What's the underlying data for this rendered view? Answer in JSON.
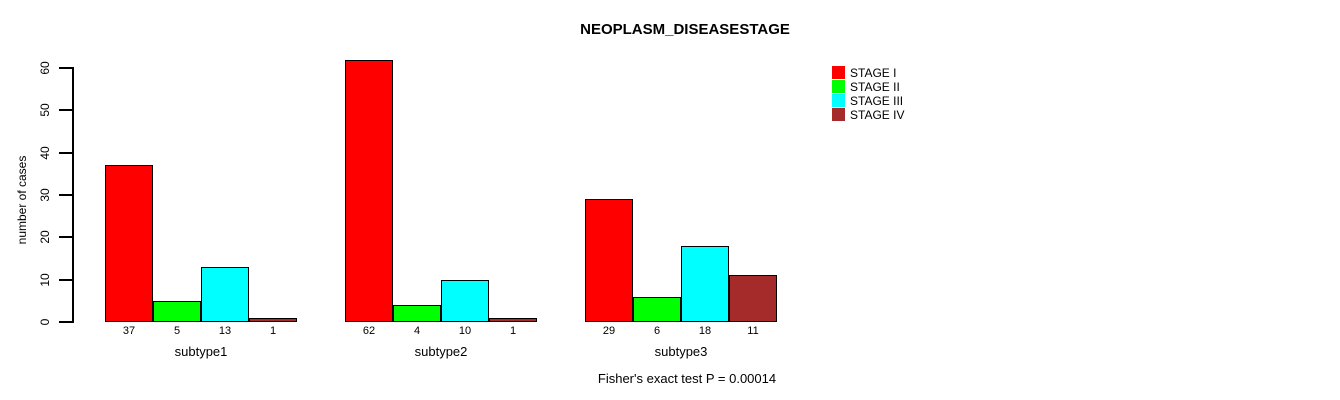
{
  "page": {
    "background": "#FFFFFF",
    "text_color": "#000000"
  },
  "chart_data": {
    "type": "bar",
    "title": "NEOPLASM_DISEASESTAGE",
    "ylabel": "number of cases",
    "xlabel": "",
    "ylim": [
      0,
      60
    ],
    "yticks": [
      0,
      10,
      20,
      30,
      40,
      50,
      60
    ],
    "grid": false,
    "legend_position": "top-right",
    "categories": [
      "subtype1",
      "subtype2",
      "subtype3"
    ],
    "series": [
      {
        "name": "STAGE I",
        "color": "#FF0000",
        "values": [
          37,
          62,
          29
        ]
      },
      {
        "name": "STAGE II",
        "color": "#00FF00",
        "values": [
          5,
          4,
          6
        ]
      },
      {
        "name": "STAGE III",
        "color": "#00FFFF",
        "values": [
          13,
          10,
          18
        ]
      },
      {
        "name": "STAGE IV",
        "color": "#A52A2A",
        "values": [
          1,
          1,
          11
        ]
      }
    ],
    "bar_value_labels_visible": true,
    "caption": "Fisher's exact test P = 0.00014",
    "axis_color": "#000000",
    "bar_border_color": "#000000"
  }
}
